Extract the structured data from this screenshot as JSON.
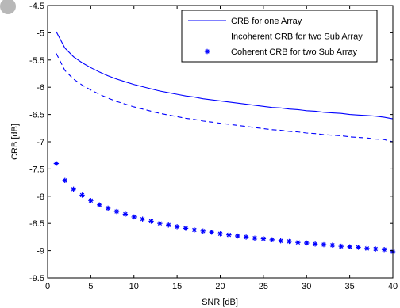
{
  "chart_data": {
    "type": "line",
    "title": "",
    "xlabel": "SNR [dB]",
    "ylabel": "CRB [dB]",
    "xlim": [
      0,
      40
    ],
    "ylim": [
      -9.5,
      -4.5
    ],
    "xticks": [
      0,
      5,
      10,
      15,
      20,
      25,
      30,
      35,
      40
    ],
    "yticks": [
      -9.5,
      -9,
      -8.5,
      -8,
      -7.5,
      -7,
      -6.5,
      -6,
      -5.5,
      -5,
      -4.5
    ],
    "xtick_labels": [
      "0",
      "5",
      "10",
      "15",
      "20",
      "25",
      "30",
      "35",
      "40"
    ],
    "ytick_labels": [
      "-9.5",
      "-9",
      "-8.5",
      "-8",
      "-7.5",
      "-7",
      "-6.5",
      "-6",
      "-5.5",
      "-5",
      "-4.5"
    ],
    "grid": false,
    "legend_position": "top-right",
    "x": [
      1,
      2,
      3,
      4,
      5,
      6,
      7,
      8,
      9,
      10,
      11,
      12,
      13,
      14,
      15,
      16,
      17,
      18,
      19,
      20,
      21,
      22,
      23,
      24,
      25,
      26,
      27,
      28,
      29,
      30,
      31,
      32,
      33,
      34,
      35,
      36,
      37,
      38,
      39,
      40
    ],
    "series": [
      {
        "name": "CRB for one Array",
        "style": "solid",
        "color": "#0000ff",
        "values": [
          -4.98,
          -5.28,
          -5.44,
          -5.55,
          -5.64,
          -5.72,
          -5.79,
          -5.85,
          -5.9,
          -5.95,
          -5.99,
          -6.03,
          -6.07,
          -6.1,
          -6.13,
          -6.16,
          -6.18,
          -6.21,
          -6.23,
          -6.25,
          -6.27,
          -6.29,
          -6.31,
          -6.33,
          -6.35,
          -6.37,
          -6.38,
          -6.4,
          -6.41,
          -6.43,
          -6.44,
          -6.46,
          -6.47,
          -6.48,
          -6.5,
          -6.51,
          -6.52,
          -6.53,
          -6.55,
          -6.58
        ]
      },
      {
        "name": "Incoherent CRB for two Sub Array",
        "style": "dashed",
        "color": "#0000ff",
        "values": [
          -5.38,
          -5.69,
          -5.85,
          -5.96,
          -6.05,
          -6.13,
          -6.2,
          -6.26,
          -6.31,
          -6.36,
          -6.4,
          -6.44,
          -6.48,
          -6.51,
          -6.54,
          -6.57,
          -6.59,
          -6.62,
          -6.64,
          -6.66,
          -6.68,
          -6.7,
          -6.72,
          -6.74,
          -6.76,
          -6.78,
          -6.79,
          -6.81,
          -6.82,
          -6.84,
          -6.85,
          -6.87,
          -6.88,
          -6.89,
          -6.91,
          -6.92,
          -6.93,
          -6.95,
          -6.96,
          -7.0
        ]
      },
      {
        "name": "Coherent CRB for two Sub Array",
        "style": "markers",
        "marker": "asterisk",
        "color": "#0000ff",
        "values": [
          -7.4,
          -7.71,
          -7.87,
          -7.98,
          -8.08,
          -8.16,
          -8.22,
          -8.28,
          -8.33,
          -8.38,
          -8.42,
          -8.46,
          -8.5,
          -8.53,
          -8.56,
          -8.59,
          -8.62,
          -8.64,
          -8.66,
          -8.69,
          -8.71,
          -8.73,
          -8.75,
          -8.77,
          -8.78,
          -8.8,
          -8.82,
          -8.83,
          -8.85,
          -8.86,
          -8.88,
          -8.89,
          -8.9,
          -8.92,
          -8.93,
          -8.94,
          -8.96,
          -8.97,
          -8.98,
          -9.02
        ]
      }
    ]
  },
  "colors": {
    "series": "#0000ff",
    "axes": "#000000",
    "background": "#ffffff",
    "corner_marker": "#b8b8b8"
  }
}
